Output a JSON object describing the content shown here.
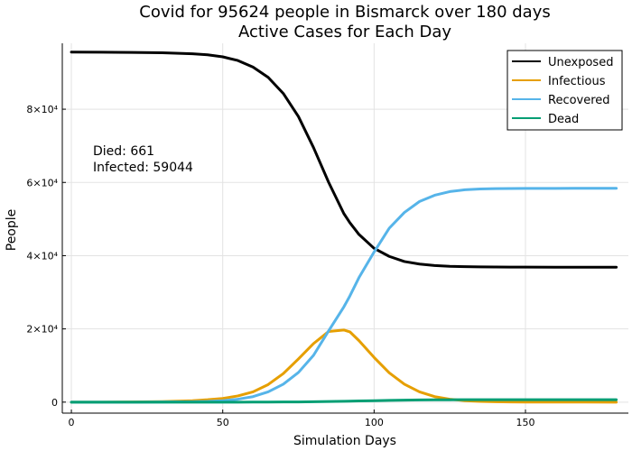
{
  "chart_data": {
    "type": "line",
    "title": "Covid for 95624 people in Bismarck over 180 days",
    "subtitle": "Active Cases for Each Day",
    "xlabel": "Simulation Days",
    "ylabel": "People",
    "xlim": [
      -3,
      184
    ],
    "ylim": [
      -3000,
      98000
    ],
    "xticks": [
      0,
      50,
      100,
      150
    ],
    "xtick_labels": [
      "0",
      "50",
      "100",
      "150"
    ],
    "yticks": [
      0,
      20000,
      40000,
      60000,
      80000
    ],
    "ytick_labels": [
      "0",
      "2×10⁴",
      "4×10⁴",
      "6×10⁴",
      "8×10⁴"
    ],
    "grid": true,
    "legend_position": "top-right",
    "annotations": [
      "Died: 661",
      "Infected: 59044"
    ],
    "x": [
      0,
      10,
      20,
      30,
      40,
      45,
      50,
      55,
      60,
      65,
      70,
      75,
      80,
      85,
      90,
      92,
      95,
      100,
      105,
      110,
      115,
      120,
      125,
      130,
      135,
      140,
      145,
      150,
      160,
      170,
      180
    ],
    "series": [
      {
        "name": "Unexposed",
        "color": "#000000",
        "values": [
          95600,
          95560,
          95500,
          95400,
          95150,
          94850,
          94300,
          93300,
          91500,
          88700,
          84300,
          78000,
          69500,
          60000,
          51500,
          49000,
          45800,
          42000,
          39800,
          38400,
          37700,
          37300,
          37100,
          37000,
          36950,
          36900,
          36880,
          36870,
          36860,
          36850,
          36850
        ]
      },
      {
        "name": "Infectious",
        "color": "#e69f00",
        "values": [
          0,
          0,
          50,
          150,
          400,
          650,
          1000,
          1700,
          2800,
          4800,
          7800,
          11800,
          16000,
          19300,
          19700,
          19200,
          16800,
          12200,
          8000,
          4900,
          2800,
          1500,
          800,
          400,
          200,
          100,
          50,
          30,
          10,
          5,
          0
        ]
      },
      {
        "name": "Recovered",
        "color": "#56b4e9",
        "values": [
          0,
          0,
          0,
          50,
          100,
          200,
          400,
          800,
          1500,
          2800,
          4900,
          8100,
          12800,
          19500,
          26000,
          29000,
          34000,
          41000,
          47500,
          51800,
          54800,
          56500,
          57500,
          58000,
          58200,
          58300,
          58350,
          58370,
          58380,
          58390,
          58390
        ]
      },
      {
        "name": "Dead",
        "color": "#009e73",
        "values": [
          0,
          0,
          0,
          0,
          0,
          0,
          0,
          0,
          10,
          20,
          40,
          60,
          100,
          160,
          230,
          260,
          310,
          400,
          480,
          550,
          600,
          630,
          645,
          655,
          660,
          661,
          661,
          661,
          661,
          661,
          661
        ]
      }
    ]
  }
}
